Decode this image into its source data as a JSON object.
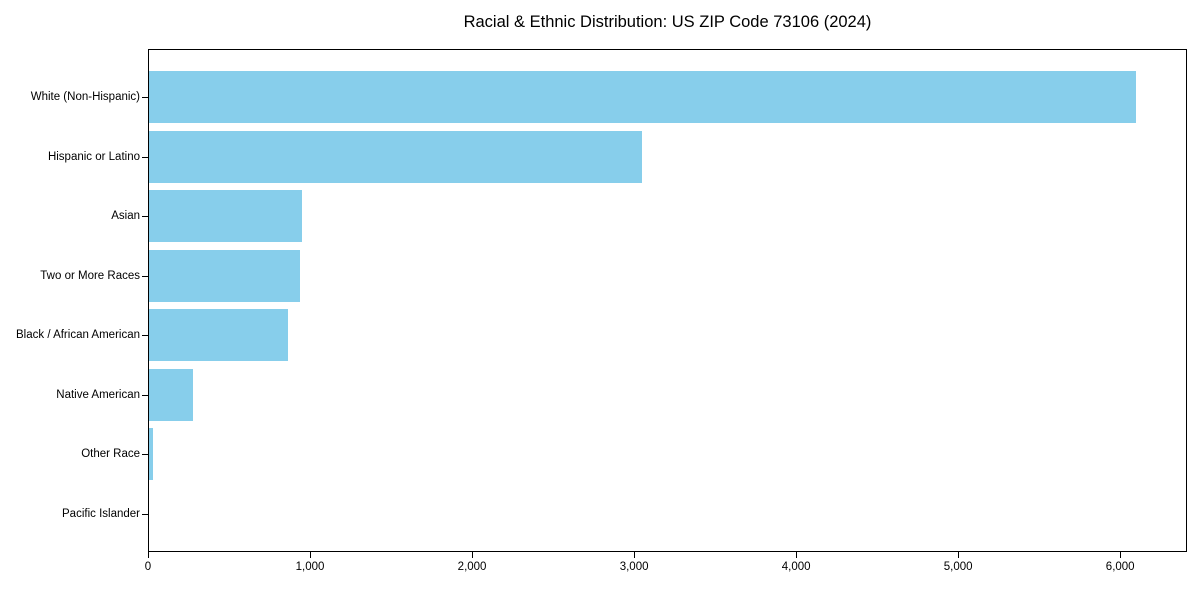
{
  "title": "Racial & Ethnic Distribution: US ZIP Code 73106 (2024)",
  "colors": {
    "bar": "#87CEEB",
    "axis": "#000000",
    "text": "#000000",
    "background": "#FFFFFF"
  },
  "chart_data": {
    "type": "bar",
    "orientation": "horizontal",
    "title": "Racial & Ethnic Distribution: US ZIP Code 73106 (2024)",
    "categories": [
      "White (Non-Hispanic)",
      "Hispanic or Latino",
      "Asian",
      "Two or More Races",
      "Black / African American",
      "Native American",
      "Other Race",
      "Pacific Islander"
    ],
    "values": [
      6090,
      3040,
      945,
      930,
      855,
      270,
      25,
      0
    ],
    "bar_color": "#87CEEB",
    "xlabel": "",
    "ylabel": "",
    "xlim": [
      0,
      6400
    ],
    "xticks": [
      0,
      1000,
      2000,
      3000,
      4000,
      5000,
      6000
    ],
    "xtick_labels": [
      "0",
      "1,000",
      "2,000",
      "3,000",
      "4,000",
      "5,000",
      "6,000"
    ],
    "grid": false,
    "legend": null
  }
}
